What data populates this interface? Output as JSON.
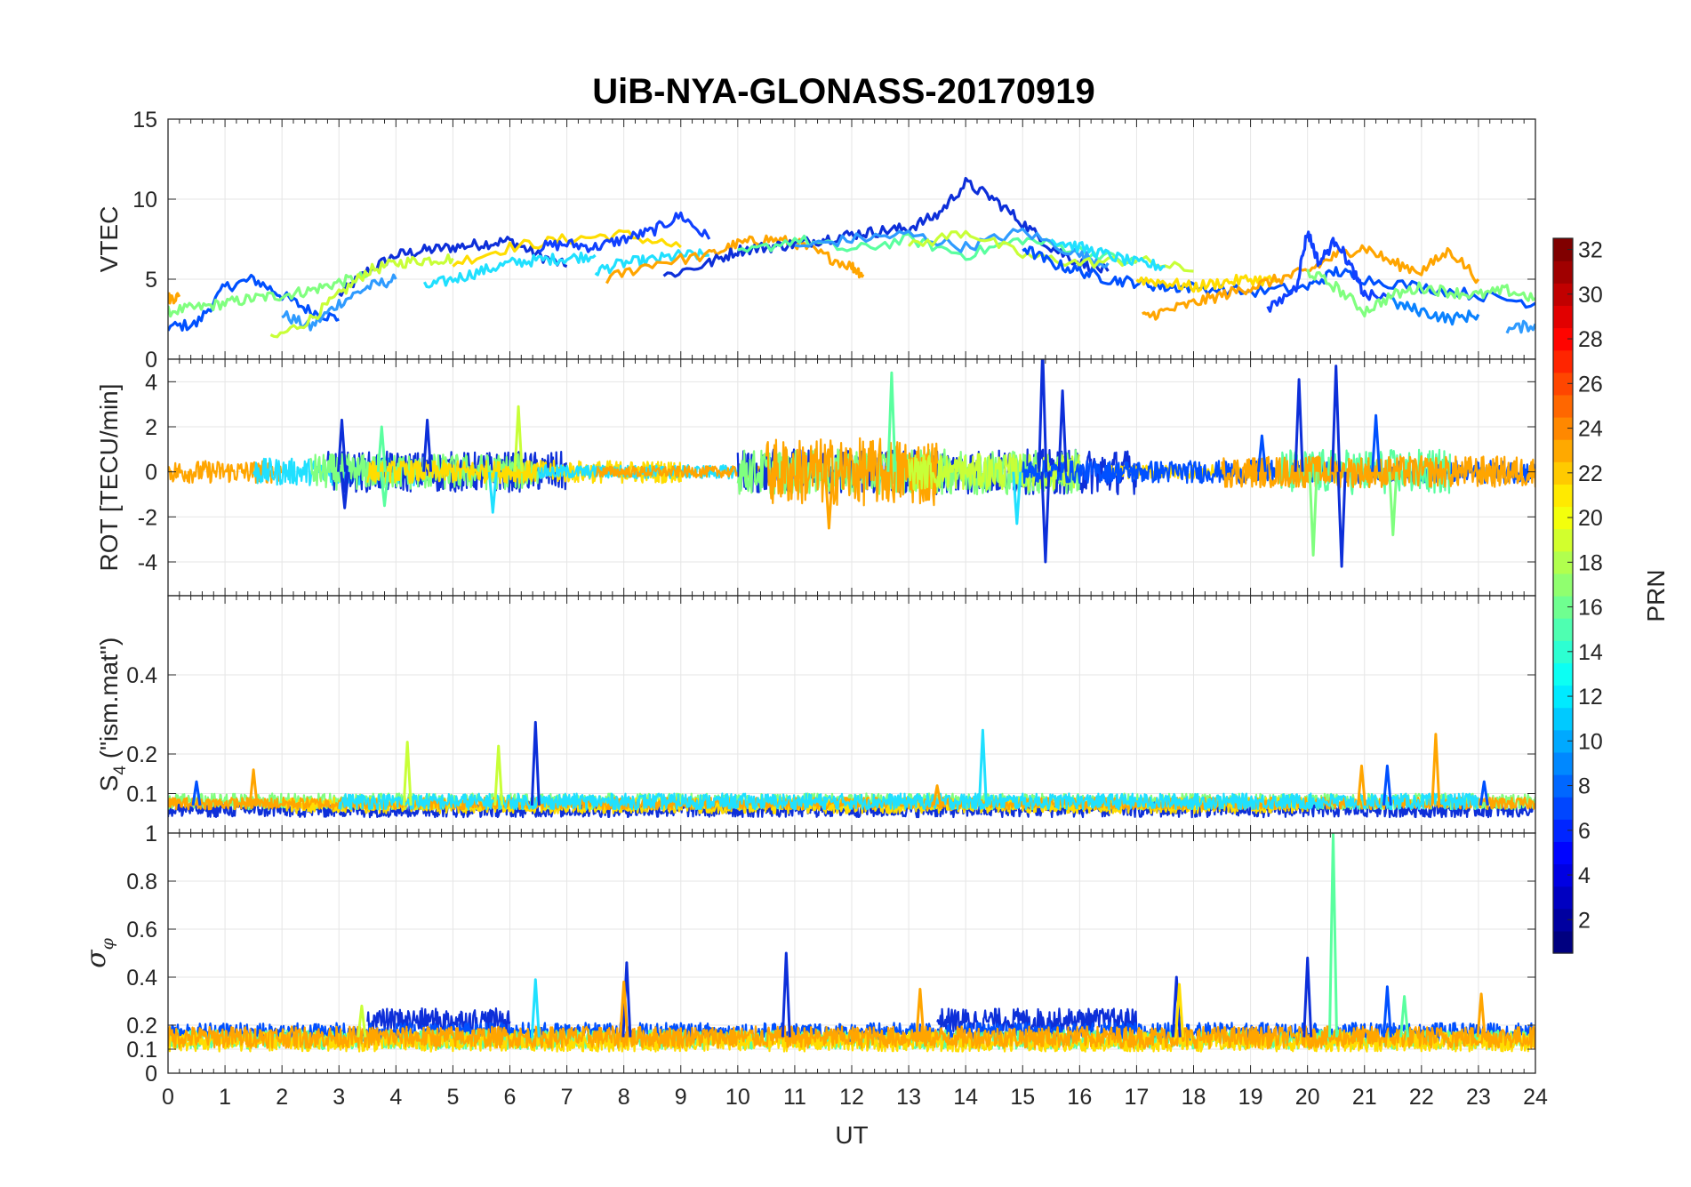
{
  "chart_data": {
    "type": "line",
    "title": "UiB-NYA-GLONASS-20170919",
    "xlabel": "UT",
    "x_ticks": [
      "0",
      "1",
      "2",
      "3",
      "4",
      "5",
      "6",
      "7",
      "8",
      "9",
      "10",
      "11",
      "12",
      "13",
      "14",
      "15",
      "16",
      "17",
      "18",
      "19",
      "20",
      "21",
      "22",
      "23",
      "24"
    ],
    "xlim": [
      0,
      24
    ],
    "grid": true,
    "panels": [
      {
        "ylabel": "VTEC",
        "ylim": [
          0,
          15
        ],
        "y_ticks": [
          "0",
          "5",
          "10",
          "15"
        ],
        "series": [
          {
            "color": "#0d2fd9",
            "x": [
              3.0,
              3.5,
              4.0,
              4.5,
              5.0,
              5.5,
              6.0,
              6.5,
              7.0
            ],
            "y": [
              4.0,
              5.5,
              6.5,
              6.8,
              7.0,
              7.2,
              7.4,
              6.5,
              5.8
            ]
          },
          {
            "color": "#0050ff",
            "x": [
              0.0,
              0.5,
              1.0,
              1.5,
              2.0,
              2.5,
              3.0
            ],
            "y": [
              2.0,
              2.2,
              4.5,
              5.0,
              4.0,
              3.0,
              2.5
            ]
          },
          {
            "color": "#2f9bff",
            "x": [
              2.0,
              2.5,
              3.0,
              3.5,
              4.0
            ],
            "y": [
              2.8,
              2.0,
              3.5,
              4.5,
              5.0
            ]
          },
          {
            "color": "#80ff7f",
            "x": [
              0.0,
              0.5,
              1.0,
              1.5,
              2.0,
              2.5,
              3.0,
              3.5
            ],
            "y": [
              3.0,
              3.2,
              3.5,
              3.8,
              4.0,
              4.3,
              4.8,
              5.2
            ]
          },
          {
            "color": "#c8ff37",
            "x": [
              1.8,
              2.5,
              3.0,
              3.5,
              4.0,
              4.5,
              5.0
            ],
            "y": [
              1.2,
              2.5,
              4.0,
              5.5,
              6.0,
              6.2,
              6.3
            ]
          },
          {
            "color": "#ffa500",
            "x": [
              0.0,
              0.2
            ],
            "y": [
              3.8,
              3.9
            ]
          },
          {
            "color": "#ffdd00",
            "x": [
              5.0,
              6.0,
              7.0,
              8.0,
              9.0
            ],
            "y": [
              6.0,
              7.0,
              7.5,
              7.8,
              7.0
            ]
          },
          {
            "color": "#20e0ff",
            "x": [
              4.5,
              5.0,
              5.5,
              6.0,
              6.5,
              7.0,
              7.5
            ],
            "y": [
              4.5,
              5.0,
              5.5,
              6.0,
              6.2,
              6.3,
              6.5
            ]
          },
          {
            "color": "#1040ff",
            "x": [
              6.5,
              7.0,
              7.5,
              8.0,
              8.5,
              9.0,
              9.5
            ],
            "y": [
              7.0,
              7.2,
              7.0,
              7.5,
              8.0,
              9.0,
              7.5
            ]
          },
          {
            "color": "#20e0ff",
            "x": [
              7.5,
              8.0,
              8.5,
              9.0,
              9.5
            ],
            "y": [
              5.5,
              6.0,
              6.2,
              6.5,
              6.5
            ]
          },
          {
            "color": "#ffa500",
            "x": [
              7.7,
              8.5,
              9.5,
              10.0,
              10.5,
              11.0,
              11.5,
              12.0,
              12.2
            ],
            "y": [
              5.0,
              6.0,
              6.5,
              7.2,
              7.5,
              7.3,
              6.5,
              5.8,
              5.3
            ]
          },
          {
            "color": "#0d2fd9",
            "x": [
              8.7,
              9.5,
              10.0,
              10.5,
              11.0,
              11.5,
              12.0,
              12.5,
              13.0,
              13.5,
              14.0,
              14.5,
              15.0,
              15.5,
              16.0,
              16.5
            ],
            "y": [
              5.2,
              6.0,
              6.8,
              7.0,
              7.2,
              7.5,
              7.8,
              8.0,
              8.2,
              9.0,
              11.0,
              10.0,
              8.5,
              7.0,
              6.0,
              5.5
            ]
          },
          {
            "color": "#5aff9f",
            "x": [
              10.0,
              11.0,
              12.0,
              13.0,
              14.0,
              15.0,
              16.0,
              17.0
            ],
            "y": [
              6.5,
              7.5,
              6.8,
              7.5,
              6.5,
              7.5,
              6.8,
              6.0
            ]
          },
          {
            "color": "#2f9bff",
            "x": [
              11.0,
              12.0,
              13.0,
              14.0,
              15.0,
              16.0,
              16.5
            ],
            "y": [
              7.0,
              7.5,
              7.8,
              7.0,
              8.0,
              6.5,
              6.0
            ]
          },
          {
            "color": "#c8ff37",
            "x": [
              13.0,
              14.0,
              15.0,
              16.0,
              17.0,
              18.0
            ],
            "y": [
              7.0,
              8.0,
              6.5,
              6.0,
              6.2,
              5.5
            ]
          },
          {
            "color": "#0050ff",
            "x": [
              15.0,
              15.5,
              16.0,
              16.5,
              17.0,
              17.5,
              18.0,
              19.0,
              20.0,
              20.5,
              21.0,
              22.0,
              23.0,
              24.0
            ],
            "y": [
              7.0,
              6.0,
              5.5,
              5.0,
              4.8,
              4.5,
              4.5,
              4.2,
              4.5,
              5.5,
              5.0,
              4.5,
              4.0,
              3.5
            ]
          },
          {
            "color": "#20e0ff",
            "x": [
              15.5,
              16.0,
              16.5,
              17.0,
              17.5
            ],
            "y": [
              7.5,
              7.0,
              6.5,
              6.0,
              5.8
            ]
          },
          {
            "color": "#ffdd00",
            "x": [
              17.0,
              17.5,
              18.0,
              18.5,
              19.0,
              19.5
            ],
            "y": [
              5.0,
              4.8,
              4.5,
              4.8,
              5.0,
              4.9
            ]
          },
          {
            "color": "#ffa500",
            "x": [
              17.1,
              17.5,
              18.0,
              18.5,
              19.0,
              19.5,
              20.0,
              20.5,
              21.0,
              21.5,
              22.0,
              22.5,
              23.0
            ],
            "y": [
              2.6,
              3.0,
              3.5,
              4.0,
              4.5,
              5.0,
              5.5,
              6.5,
              7.0,
              6.0,
              5.5,
              6.8,
              5.0
            ]
          },
          {
            "color": "#1040ff",
            "x": [
              19.3,
              19.8,
              20.0,
              20.2,
              20.5,
              20.8,
              21.0,
              21.5
            ],
            "y": [
              3.0,
              4.5,
              8.0,
              6.0,
              7.5,
              5.5,
              4.0,
              3.8
            ]
          },
          {
            "color": "#80ff7f",
            "x": [
              20.0,
              20.5,
              21.0,
              21.5,
              22.0,
              22.5,
              23.0,
              23.5,
              24.0
            ],
            "y": [
              5.5,
              4.5,
              3.0,
              4.0,
              4.5,
              4.2,
              4.0,
              4.3,
              3.8
            ]
          },
          {
            "color": "#0a82ff",
            "x": [
              21.5,
              22.0,
              22.5,
              23.0
            ],
            "y": [
              3.5,
              3.0,
              2.5,
              2.8
            ]
          },
          {
            "color": "#2f9bff",
            "x": [
              23.5,
              24.0
            ],
            "y": [
              1.8,
              2.2
            ]
          }
        ]
      },
      {
        "ylabel": "ROT [TECU/min]",
        "ylim": [
          -5.5,
          5.0
        ],
        "y_ticks": [
          "-4",
          "-2",
          "0",
          "2",
          "4"
        ],
        "noise_bands": [
          {
            "color": "#ffa500",
            "x0": 0.0,
            "x1": 2.0,
            "amp": 0.5
          },
          {
            "color": "#20e0ff",
            "x0": 1.5,
            "x1": 4.5,
            "amp": 0.6
          },
          {
            "color": "#0d2fd9",
            "x0": 2.8,
            "x1": 7.0,
            "amp": 0.9
          },
          {
            "color": "#80ff7f",
            "x0": 2.5,
            "x1": 6.5,
            "amp": 0.8
          },
          {
            "color": "#ffdd00",
            "x0": 3.5,
            "x1": 9.0,
            "amp": 0.5
          },
          {
            "color": "#20e0ff",
            "x0": 6.5,
            "x1": 10.0,
            "amp": 0.3
          },
          {
            "color": "#ffa500",
            "x0": 7.5,
            "x1": 10.5,
            "amp": 0.25
          },
          {
            "color": "#0d2fd9",
            "x0": 10.0,
            "x1": 17.0,
            "amp": 1.0
          },
          {
            "color": "#80ff7f",
            "x0": 10.0,
            "x1": 16.0,
            "amp": 1.0
          },
          {
            "color": "#ffa500",
            "x0": 10.5,
            "x1": 13.5,
            "amp": 1.5
          },
          {
            "color": "#c8ff37",
            "x0": 13.0,
            "x1": 16.0,
            "amp": 0.8
          },
          {
            "color": "#ffdd00",
            "x0": 16.5,
            "x1": 19.5,
            "amp": 0.3
          },
          {
            "color": "#0050ff",
            "x0": 15.0,
            "x1": 24.0,
            "amp": 0.5
          },
          {
            "color": "#5aff9f",
            "x0": 19.5,
            "x1": 22.5,
            "amp": 1.0
          },
          {
            "color": "#ffa500",
            "x0": 18.5,
            "x1": 24.0,
            "amp": 0.7
          }
        ],
        "spikes": [
          {
            "color": "#0d2fd9",
            "x": 3.05,
            "y": 2.3
          },
          {
            "color": "#0d2fd9",
            "x": 3.1,
            "y": -1.6
          },
          {
            "color": "#5aff9f",
            "x": 3.75,
            "y": 2.0
          },
          {
            "color": "#5aff9f",
            "x": 3.8,
            "y": -1.5
          },
          {
            "color": "#0d2fd9",
            "x": 4.55,
            "y": 2.3
          },
          {
            "color": "#c8ff37",
            "x": 6.15,
            "y": 2.9
          },
          {
            "color": "#20e0ff",
            "x": 5.7,
            "y": -1.8
          },
          {
            "color": "#5aff9f",
            "x": 12.7,
            "y": 4.4
          },
          {
            "color": "#ffa500",
            "x": 11.6,
            "y": -2.5
          },
          {
            "color": "#0d2fd9",
            "x": 15.35,
            "y": 5.5
          },
          {
            "color": "#0d2fd9",
            "x": 15.4,
            "y": -4.0
          },
          {
            "color": "#0d2fd9",
            "x": 15.7,
            "y": 3.6
          },
          {
            "color": "#20e0ff",
            "x": 14.9,
            "y": -2.3
          },
          {
            "color": "#0d2fd9",
            "x": 19.85,
            "y": 4.1
          },
          {
            "color": "#0d2fd9",
            "x": 20.5,
            "y": 4.7
          },
          {
            "color": "#0d2fd9",
            "x": 20.6,
            "y": -4.2
          },
          {
            "color": "#80ff7f",
            "x": 20.1,
            "y": -3.7
          },
          {
            "color": "#80ff7f",
            "x": 21.5,
            "y": -2.8
          },
          {
            "color": "#0050ff",
            "x": 21.2,
            "y": 2.5
          },
          {
            "color": "#0050ff",
            "x": 19.2,
            "y": 1.6
          }
        ]
      },
      {
        "ylabel": "S",
        "ylabel_sub": "4",
        "ylabel_suffix": " (\"ism.mat\")",
        "ylim": [
          0,
          0.6
        ],
        "y_ticks": [
          "0.1",
          "0.2",
          "0.4"
        ],
        "noise_bands": [
          {
            "color": "#0d2fd9",
            "x0": 0.0,
            "x1": 24.0,
            "amp": 0.02,
            "base": 0.06
          },
          {
            "color": "#80ff7f",
            "x0": 0.0,
            "x1": 24.0,
            "amp": 0.02,
            "base": 0.08
          },
          {
            "color": "#ffdd00",
            "x0": 2.0,
            "x1": 20.0,
            "amp": 0.02,
            "base": 0.07
          },
          {
            "color": "#ffa500",
            "x0": 0.0,
            "x1": 24.0,
            "amp": 0.015,
            "base": 0.075
          },
          {
            "color": "#20e0ff",
            "x0": 3.0,
            "x1": 23.0,
            "amp": 0.02,
            "base": 0.08
          }
        ],
        "spikes": [
          {
            "color": "#ffa500",
            "x": 1.5,
            "y": 0.16
          },
          {
            "color": "#c8ff37",
            "x": 4.2,
            "y": 0.23
          },
          {
            "color": "#c8ff37",
            "x": 5.8,
            "y": 0.22
          },
          {
            "color": "#0d2fd9",
            "x": 6.45,
            "y": 0.28
          },
          {
            "color": "#20e0ff",
            "x": 14.3,
            "y": 0.26
          },
          {
            "color": "#ffa500",
            "x": 20.95,
            "y": 0.17
          },
          {
            "color": "#0050ff",
            "x": 21.4,
            "y": 0.17
          },
          {
            "color": "#ffa500",
            "x": 22.25,
            "y": 0.25
          },
          {
            "color": "#0050ff",
            "x": 23.1,
            "y": 0.13
          },
          {
            "color": "#0050ff",
            "x": 0.5,
            "y": 0.13
          },
          {
            "color": "#ffa500",
            "x": 13.5,
            "y": 0.12
          }
        ]
      },
      {
        "ylabel": "σ",
        "ylabel_sub": "φ",
        "ylim": [
          0,
          1
        ],
        "y_ticks": [
          "0",
          "0.1",
          "0.2",
          "0.4",
          "0.6",
          "0.8",
          "1"
        ],
        "noise_bands": [
          {
            "color": "#0d2fd9",
            "x0": 3.5,
            "x1": 6.0,
            "amp": 0.05,
            "base": 0.22
          },
          {
            "color": "#0d2fd9",
            "x0": 13.5,
            "x1": 17.0,
            "amp": 0.05,
            "base": 0.22
          },
          {
            "color": "#0050ff",
            "x0": 0.0,
            "x1": 24.0,
            "amp": 0.04,
            "base": 0.17
          },
          {
            "color": "#5aff9f",
            "x0": 0.0,
            "x1": 24.0,
            "amp": 0.04,
            "base": 0.14
          },
          {
            "color": "#ffdd00",
            "x0": 0.0,
            "x1": 24.0,
            "amp": 0.04,
            "base": 0.13
          },
          {
            "color": "#ffa500",
            "x0": 0.0,
            "x1": 24.0,
            "amp": 0.045,
            "base": 0.15
          }
        ],
        "spikes": [
          {
            "color": "#c8ff37",
            "x": 3.4,
            "y": 0.28
          },
          {
            "color": "#20e0ff",
            "x": 6.45,
            "y": 0.39
          },
          {
            "color": "#0d2fd9",
            "x": 8.05,
            "y": 0.46
          },
          {
            "color": "#ffa500",
            "x": 8.0,
            "y": 0.38
          },
          {
            "color": "#0d2fd9",
            "x": 10.85,
            "y": 0.5
          },
          {
            "color": "#ffa500",
            "x": 13.2,
            "y": 0.35
          },
          {
            "color": "#0d2fd9",
            "x": 17.7,
            "y": 0.4
          },
          {
            "color": "#ffdd00",
            "x": 17.75,
            "y": 0.37
          },
          {
            "color": "#0d2fd9",
            "x": 20.0,
            "y": 0.48
          },
          {
            "color": "#5aff9f",
            "x": 20.45,
            "y": 1.0
          },
          {
            "color": "#0050ff",
            "x": 21.4,
            "y": 0.36
          },
          {
            "color": "#5aff9f",
            "x": 21.7,
            "y": 0.32
          },
          {
            "color": "#ffa500",
            "x": 23.05,
            "y": 0.33
          }
        ]
      }
    ],
    "colorbar": {
      "label": "PRN",
      "range": [
        1,
        32
      ],
      "ticks": [
        "2",
        "4",
        "6",
        "8",
        "10",
        "12",
        "14",
        "16",
        "18",
        "20",
        "22",
        "24",
        "26",
        "28",
        "30",
        "32"
      ],
      "colormap": "jet"
    }
  }
}
